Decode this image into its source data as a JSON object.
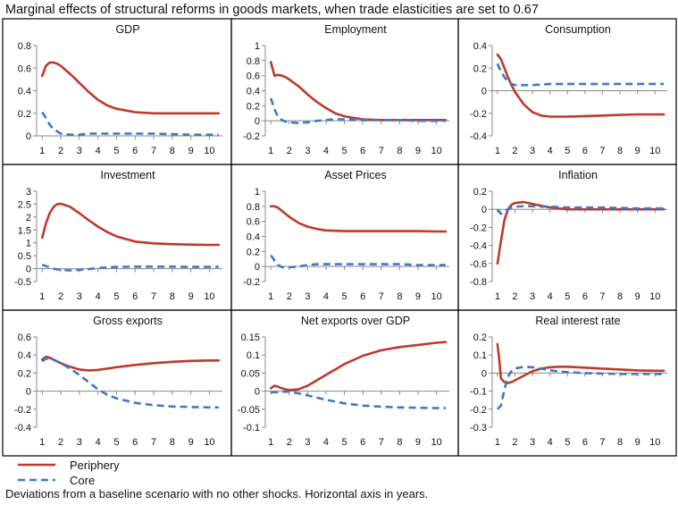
{
  "figure": {
    "title": "Marginal effects of structural reforms in goods markets, when trade elasticities are set to 0.67",
    "footnote": "Deviations from a baseline scenario with no other shocks. Horizontal axis in years.",
    "legend": [
      {
        "name": "Periphery",
        "color": "#c0392b",
        "style": "solid"
      },
      {
        "name": "Core",
        "color": "#3d7ac4",
        "style": "dashed"
      }
    ]
  },
  "chart_data": [
    {
      "type": "line",
      "title": "GDP",
      "x": [
        1,
        1.2,
        1.4,
        1.6,
        1.8,
        2,
        2.5,
        3,
        3.5,
        4,
        4.5,
        5,
        6,
        7,
        8,
        9,
        10,
        10.5
      ],
      "x_ticks": [
        1,
        2,
        3,
        4,
        5,
        6,
        7,
        8,
        9,
        10
      ],
      "ylim": [
        0,
        0.8
      ],
      "y_ticks": [
        0,
        0.2,
        0.4,
        0.6,
        0.8
      ],
      "y_tick_labels": [
        "0",
        "0.2",
        "0.4",
        "0.6",
        "0.8"
      ],
      "series": [
        {
          "name": "Periphery",
          "values": [
            0.53,
            0.62,
            0.65,
            0.65,
            0.64,
            0.62,
            0.55,
            0.47,
            0.39,
            0.32,
            0.27,
            0.24,
            0.21,
            0.2,
            0.2,
            0.2,
            0.2,
            0.2
          ]
        },
        {
          "name": "Core",
          "values": [
            0.21,
            0.16,
            0.1,
            0.06,
            0.04,
            0.02,
            0.01,
            0.01,
            0.02,
            0.02,
            0.02,
            0.02,
            0.02,
            0.02,
            0.015,
            0.01,
            0.01,
            0.01
          ]
        }
      ]
    },
    {
      "type": "line",
      "title": "Employment",
      "x": [
        1,
        1.2,
        1.4,
        1.6,
        1.8,
        2,
        2.5,
        3,
        3.5,
        4,
        4.5,
        5,
        6,
        7,
        8,
        9,
        10,
        10.5
      ],
      "x_ticks": [
        1,
        2,
        3,
        4,
        5,
        6,
        7,
        8,
        9,
        10
      ],
      "ylim": [
        -0.2,
        1
      ],
      "y_ticks": [
        -0.2,
        0,
        0.2,
        0.4,
        0.6,
        0.8,
        1
      ],
      "y_tick_labels": [
        "-0.2",
        "0",
        "0.2",
        "0.4",
        "0.6",
        "0.8",
        "1"
      ],
      "series": [
        {
          "name": "Periphery",
          "values": [
            0.78,
            0.6,
            0.61,
            0.6,
            0.58,
            0.55,
            0.46,
            0.35,
            0.25,
            0.17,
            0.1,
            0.06,
            0.02,
            0.01,
            0.01,
            0.01,
            0.01,
            0.01
          ]
        },
        {
          "name": "Core",
          "values": [
            0.3,
            0.15,
            0.05,
            0.01,
            -0.01,
            -0.02,
            -0.03,
            -0.02,
            0.0,
            0.01,
            0.02,
            0.02,
            0.01,
            0.01,
            0.01,
            0.0,
            0.0,
            0.0
          ]
        }
      ]
    },
    {
      "type": "line",
      "title": "Consumption",
      "x": [
        1,
        1.2,
        1.4,
        1.6,
        1.8,
        2,
        2.5,
        3,
        3.5,
        4,
        4.5,
        5,
        6,
        7,
        8,
        9,
        10,
        10.5
      ],
      "x_ticks": [
        1,
        2,
        3,
        4,
        5,
        6,
        7,
        8,
        9,
        10
      ],
      "ylim": [
        -0.4,
        0.4
      ],
      "y_ticks": [
        -0.4,
        -0.2,
        0,
        0.2,
        0.4
      ],
      "y_tick_labels": [
        "-0.4",
        "-0.2",
        "0",
        "0.2",
        "0.4"
      ],
      "series": [
        {
          "name": "Periphery",
          "values": [
            0.32,
            0.28,
            0.2,
            0.12,
            0.05,
            -0.01,
            -0.12,
            -0.19,
            -0.22,
            -0.23,
            -0.23,
            -0.23,
            -0.225,
            -0.22,
            -0.215,
            -0.21,
            -0.21,
            -0.21
          ]
        },
        {
          "name": "Core",
          "values": [
            0.24,
            0.17,
            0.12,
            0.08,
            0.06,
            0.05,
            0.05,
            0.05,
            0.055,
            0.06,
            0.06,
            0.06,
            0.06,
            0.06,
            0.06,
            0.06,
            0.06,
            0.06
          ]
        }
      ]
    },
    {
      "type": "line",
      "title": "Investment",
      "x": [
        1,
        1.2,
        1.4,
        1.6,
        1.8,
        2,
        2.5,
        3,
        3.5,
        4,
        4.5,
        5,
        6,
        7,
        8,
        9,
        10,
        10.5
      ],
      "x_ticks": [
        1,
        2,
        3,
        4,
        5,
        6,
        7,
        8,
        9,
        10
      ],
      "ylim": [
        -0.5,
        3
      ],
      "y_ticks": [
        -0.5,
        0,
        0.5,
        1,
        1.5,
        2,
        2.5,
        3
      ],
      "y_tick_labels": [
        "-0.5",
        "0",
        "0.5",
        "1",
        "1.5",
        "2",
        "2.5",
        "3"
      ],
      "series": [
        {
          "name": "Periphery",
          "values": [
            1.2,
            1.75,
            2.15,
            2.38,
            2.5,
            2.52,
            2.4,
            2.15,
            1.88,
            1.63,
            1.42,
            1.25,
            1.05,
            0.98,
            0.95,
            0.93,
            0.92,
            0.92
          ]
        },
        {
          "name": "Core",
          "values": [
            0.15,
            0.1,
            0.05,
            0.0,
            -0.03,
            -0.05,
            -0.07,
            -0.05,
            -0.02,
            0.02,
            0.05,
            0.07,
            0.08,
            0.08,
            0.08,
            0.07,
            0.07,
            0.07
          ]
        }
      ]
    },
    {
      "type": "line",
      "title": "Asset Prices",
      "x": [
        1,
        1.2,
        1.4,
        1.6,
        1.8,
        2,
        2.5,
        3,
        3.5,
        4,
        4.5,
        5,
        6,
        7,
        8,
        9,
        10,
        10.5
      ],
      "x_ticks": [
        1,
        2,
        3,
        4,
        5,
        6,
        7,
        8,
        9,
        10
      ],
      "ylim": [
        -0.2,
        1
      ],
      "y_ticks": [
        -0.2,
        0,
        0.2,
        0.4,
        0.6,
        0.8,
        1
      ],
      "y_tick_labels": [
        "-0.2",
        "0",
        "0.2",
        "0.4",
        "0.6",
        "0.8",
        "1"
      ],
      "series": [
        {
          "name": "Periphery",
          "values": [
            0.8,
            0.8,
            0.78,
            0.74,
            0.7,
            0.66,
            0.58,
            0.53,
            0.5,
            0.48,
            0.475,
            0.47,
            0.47,
            0.47,
            0.47,
            0.47,
            0.465,
            0.465
          ]
        },
        {
          "name": "Core",
          "values": [
            0.15,
            0.08,
            0.02,
            -0.01,
            -0.01,
            -0.01,
            0.0,
            0.02,
            0.03,
            0.03,
            0.03,
            0.03,
            0.03,
            0.03,
            0.03,
            0.02,
            0.02,
            0.02
          ]
        }
      ]
    },
    {
      "type": "line",
      "title": "Inflation",
      "x": [
        1,
        1.2,
        1.4,
        1.6,
        1.8,
        2,
        2.5,
        3,
        3.5,
        4,
        4.5,
        5,
        6,
        7,
        8,
        9,
        10,
        10.5
      ],
      "x_ticks": [
        1,
        2,
        3,
        4,
        5,
        6,
        7,
        8,
        9,
        10
      ],
      "ylim": [
        -0.8,
        0.2
      ],
      "y_ticks": [
        -0.8,
        -0.6,
        -0.4,
        -0.2,
        0,
        0.2
      ],
      "y_tick_labels": [
        "-0.8",
        "-0.6",
        "-0.4",
        "-0.2",
        "0",
        "0.2"
      ],
      "series": [
        {
          "name": "Periphery",
          "values": [
            -0.6,
            -0.35,
            -0.12,
            0.0,
            0.05,
            0.07,
            0.08,
            0.06,
            0.04,
            0.02,
            0.01,
            0.0,
            0.0,
            0.0,
            0.0,
            0.0,
            0.0,
            0.0
          ]
        },
        {
          "name": "Core",
          "values": [
            0.0,
            -0.05,
            -0.02,
            0.0,
            0.02,
            0.03,
            0.035,
            0.035,
            0.03,
            0.03,
            0.025,
            0.02,
            0.02,
            0.02,
            0.015,
            0.01,
            0.01,
            0.01
          ]
        }
      ]
    },
    {
      "type": "line",
      "title": "Gross exports",
      "x": [
        1,
        1.2,
        1.4,
        1.6,
        1.8,
        2,
        2.5,
        3,
        3.5,
        4,
        4.5,
        5,
        6,
        7,
        8,
        9,
        10,
        10.5
      ],
      "x_ticks": [
        1,
        2,
        3,
        4,
        5,
        6,
        7,
        8,
        9,
        10
      ],
      "ylim": [
        -0.4,
        0.6
      ],
      "y_ticks": [
        -0.4,
        -0.2,
        0,
        0.2,
        0.4,
        0.6
      ],
      "y_tick_labels": [
        "-0.4",
        "-0.2",
        "0",
        "0.2",
        "0.4",
        "0.6"
      ],
      "series": [
        {
          "name": "Periphery",
          "values": [
            0.35,
            0.38,
            0.37,
            0.35,
            0.33,
            0.31,
            0.27,
            0.24,
            0.23,
            0.235,
            0.25,
            0.265,
            0.29,
            0.31,
            0.325,
            0.335,
            0.34,
            0.34
          ]
        },
        {
          "name": "Core",
          "values": [
            0.33,
            0.36,
            0.36,
            0.35,
            0.33,
            0.31,
            0.25,
            0.18,
            0.1,
            0.02,
            -0.04,
            -0.08,
            -0.13,
            -0.155,
            -0.17,
            -0.175,
            -0.18,
            -0.18
          ]
        }
      ]
    },
    {
      "type": "line",
      "title": "Net exports over GDP",
      "x": [
        1,
        1.2,
        1.4,
        1.6,
        1.8,
        2,
        2.5,
        3,
        3.5,
        4,
        4.5,
        5,
        6,
        7,
        8,
        9,
        10,
        10.5
      ],
      "x_ticks": [
        1,
        2,
        3,
        4,
        5,
        6,
        7,
        8,
        9,
        10
      ],
      "ylim": [
        -0.1,
        0.15
      ],
      "y_ticks": [
        -0.1,
        -0.05,
        0,
        0.05,
        0.1,
        0.15
      ],
      "y_tick_labels": [
        "-0.1",
        "-0.05",
        "0",
        "0.05",
        "0.1",
        "0.15"
      ],
      "series": [
        {
          "name": "Periphery",
          "values": [
            0.008,
            0.015,
            0.012,
            0.008,
            0.005,
            0.003,
            0.005,
            0.015,
            0.03,
            0.045,
            0.06,
            0.075,
            0.098,
            0.113,
            0.122,
            0.128,
            0.134,
            0.136
          ]
        },
        {
          "name": "Core",
          "values": [
            -0.003,
            -0.003,
            -0.003,
            -0.002,
            -0.001,
            -0.002,
            -0.006,
            -0.012,
            -0.018,
            -0.024,
            -0.029,
            -0.034,
            -0.04,
            -0.043,
            -0.045,
            -0.046,
            -0.047,
            -0.047
          ]
        }
      ]
    },
    {
      "type": "line",
      "title": "Real interest rate",
      "x": [
        1,
        1.1,
        1.2,
        1.4,
        1.6,
        1.8,
        2,
        2.5,
        3,
        3.5,
        4,
        4.5,
        5,
        6,
        7,
        8,
        9,
        10,
        10.5
      ],
      "x_ticks": [
        1,
        2,
        3,
        4,
        5,
        6,
        7,
        8,
        9,
        10
      ],
      "ylim": [
        -0.3,
        0.2
      ],
      "y_ticks": [
        -0.3,
        -0.2,
        -0.1,
        0,
        0.1,
        0.2
      ],
      "y_tick_labels": [
        "-0.3",
        "-0.2",
        "-0.1",
        "0",
        "0.1",
        "0.2"
      ],
      "series": [
        {
          "name": "Periphery",
          "values": [
            0.16,
            0.08,
            -0.03,
            -0.05,
            -0.055,
            -0.05,
            -0.04,
            -0.015,
            0.01,
            0.025,
            0.032,
            0.035,
            0.035,
            0.03,
            0.025,
            0.02,
            0.015,
            0.013,
            0.013
          ]
        },
        {
          "name": "Core",
          "values": [
            -0.2,
            -0.19,
            -0.18,
            -0.09,
            -0.02,
            0.01,
            0.025,
            0.035,
            0.032,
            0.025,
            0.015,
            0.01,
            0.005,
            0.0,
            -0.003,
            -0.005,
            -0.005,
            -0.005,
            -0.005
          ]
        }
      ]
    }
  ]
}
